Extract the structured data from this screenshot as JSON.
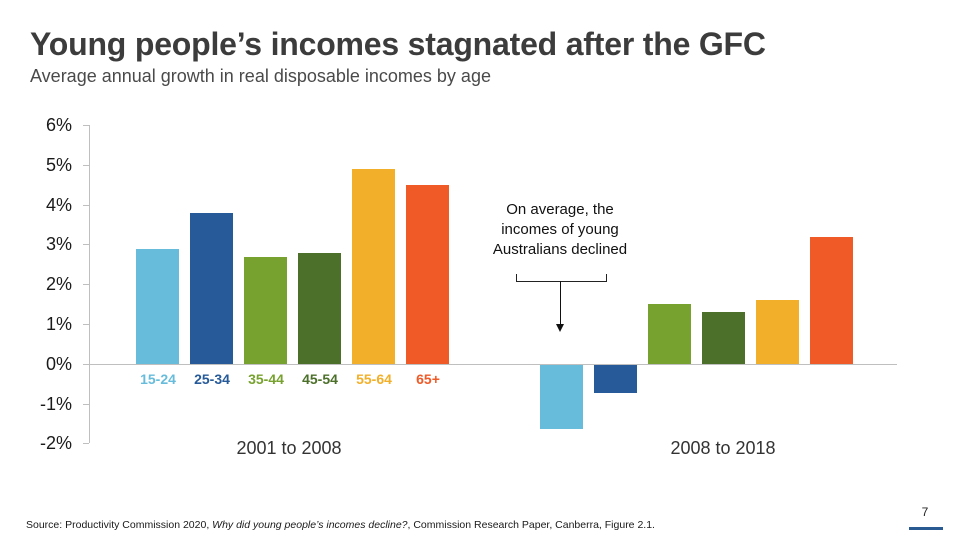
{
  "slide": {
    "title": "Young people’s incomes stagnated after the GFC",
    "subtitle": "Average annual growth in real disposable incomes by age",
    "annotation": {
      "lines": [
        "On average, the",
        "incomes of young",
        "Australians declined"
      ]
    },
    "source": {
      "prefix": "Source: Productivity Commission 2020, ",
      "italic": "Why did young people’s incomes decline?",
      "suffix": ", Commission Research Paper, Canberra, Figure 2.1."
    },
    "page_number": "7",
    "colors": {
      "15-24": "#67bcdb",
      "25-34": "#265a99",
      "35-44": "#78a22f",
      "45-54": "#4c6f2a",
      "55-64": "#f2b02a",
      "65+": "#ef5a27",
      "axis": "#bfbfbf",
      "accent": "#2a5a92"
    }
  },
  "chart_data": {
    "type": "bar",
    "title": "Young people’s incomes stagnated after the GFC",
    "subtitle": "Average annual growth in real disposable incomes by age",
    "xlabel": "",
    "ylabel": "",
    "categories": [
      "2001 to 2008",
      "2008 to 2018"
    ],
    "series": [
      {
        "name": "15-24",
        "color": "#67bcdb",
        "values": [
          2.9,
          -1.6
        ]
      },
      {
        "name": "25-34",
        "color": "#265a99",
        "values": [
          3.8,
          -0.7
        ]
      },
      {
        "name": "35-44",
        "color": "#78a22f",
        "values": [
          2.7,
          1.5
        ]
      },
      {
        "name": "45-54",
        "color": "#4c6f2a",
        "values": [
          2.8,
          1.3
        ]
      },
      {
        "name": "55-64",
        "color": "#f2b02a",
        "values": [
          4.9,
          1.6
        ]
      },
      {
        "name": "65+",
        "color": "#ef5a27",
        "values": [
          4.5,
          3.2
        ]
      }
    ],
    "yticks": [
      "6%",
      "5%",
      "4%",
      "3%",
      "2%",
      "1%",
      "0%",
      "-1%",
      "-2%"
    ],
    "ylim": [
      -2,
      6
    ],
    "units": "%",
    "grid": false,
    "legend": "age labels beneath first group bars",
    "annotations": [
      "On average, the incomes of young Australians declined"
    ]
  }
}
